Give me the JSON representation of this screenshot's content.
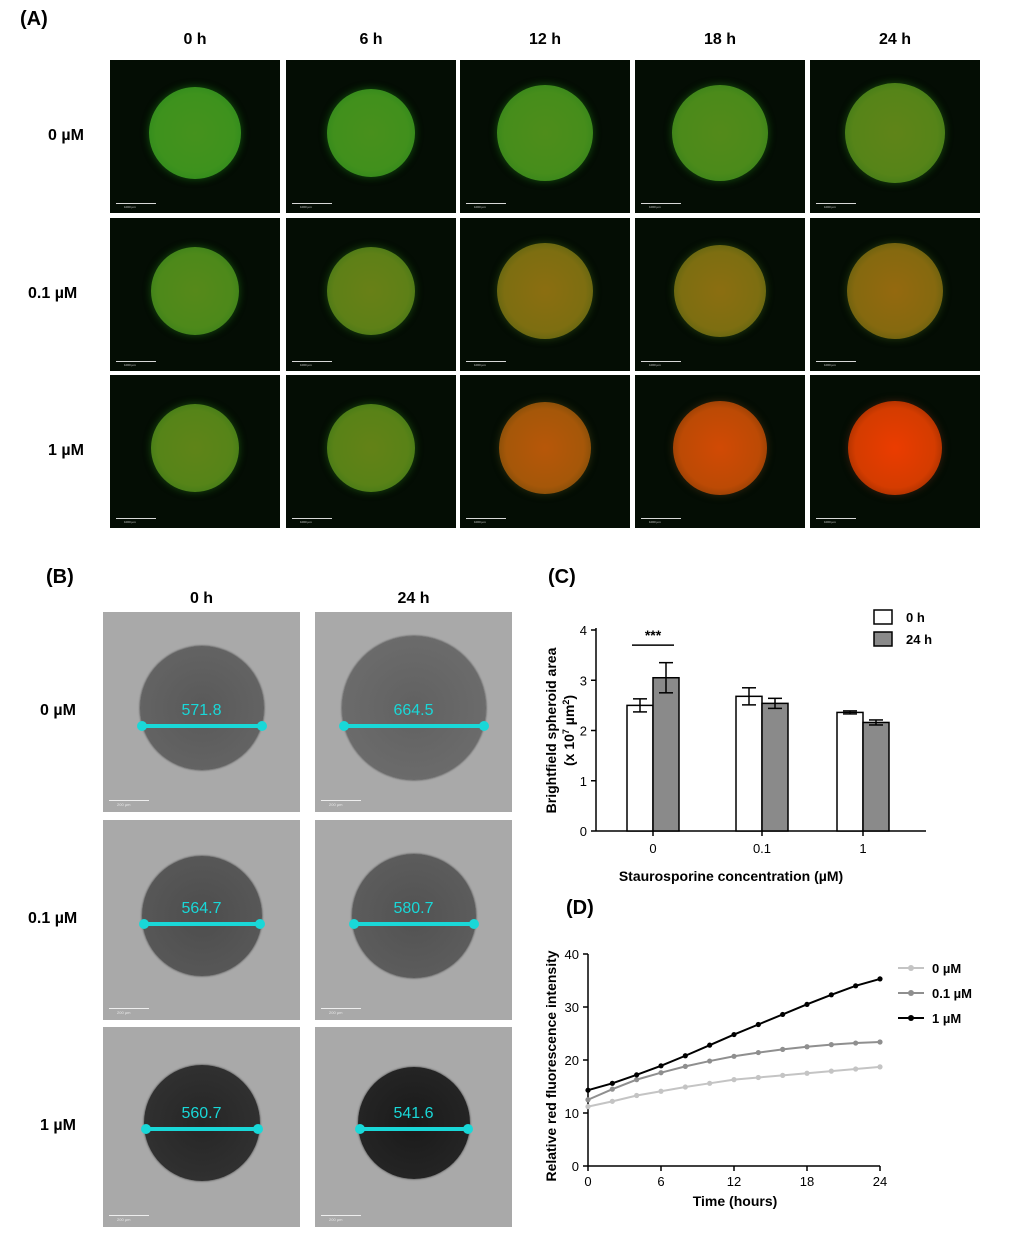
{
  "panelA": {
    "label": "(A)",
    "times": [
      "0 h",
      "6 h",
      "12 h",
      "18 h",
      "24 h"
    ],
    "concentrations": [
      "0 µM",
      "0.1 µM",
      "1 µM"
    ],
    "scale_label": "1000 µm"
  },
  "panelB": {
    "label": "(B)",
    "times": [
      "0 h",
      "24 h"
    ],
    "concentrations": [
      "0 µM",
      "0.1 µM",
      "1 µM"
    ],
    "measurements": [
      [
        "571.8",
        "664.5"
      ],
      [
        "564.7",
        "580.7"
      ],
      [
        "560.7",
        "541.6"
      ]
    ],
    "scale_label": "200 µm",
    "colors": {
      "measure_line": "#19d8d8"
    }
  },
  "panelC": {
    "label": "(C)",
    "chart_data": {
      "type": "bar",
      "categories": [
        "0",
        "0.1",
        "1"
      ],
      "series": [
        {
          "name": "0 h",
          "values": [
            2.5,
            2.68,
            2.36
          ],
          "errors": [
            0.13,
            0.17,
            0.03
          ],
          "color": "#ffffff"
        },
        {
          "name": "24 h",
          "values": [
            3.05,
            2.54,
            2.16
          ],
          "errors": [
            0.3,
            0.1,
            0.05
          ],
          "color": "#8a8a8a"
        }
      ],
      "ylabel_line1": "Brightfield spheroid area",
      "ylabel_line2": "(x 10",
      "ylabel_sup1": "7",
      "ylabel_mid": " µm",
      "ylabel_sup2": "2",
      "ylabel_end": ")",
      "xlabel": "Staurosporine concentration (µM)",
      "ylim": [
        0,
        4
      ],
      "yticks": [
        "0",
        "1",
        "2",
        "3",
        "4"
      ],
      "significance": "***",
      "legend_position": "top-right"
    }
  },
  "panelD": {
    "label": "(D)",
    "chart_data": {
      "type": "line",
      "xlabel": "Time (hours)",
      "ylabel": "Relative red fluorescence intensity",
      "xlim": [
        0,
        24
      ],
      "ylim": [
        0,
        40
      ],
      "xticks": [
        "0",
        "6",
        "12",
        "18",
        "24"
      ],
      "yticks": [
        "0",
        "10",
        "20",
        "30",
        "40"
      ],
      "legend_position": "top-right",
      "series": [
        {
          "name": "0 µM",
          "color": "#c4c4c4",
          "x": [
            0,
            2,
            4,
            6,
            8,
            10,
            12,
            14,
            16,
            18,
            20,
            22,
            24
          ],
          "y": [
            11.2,
            12.2,
            13.3,
            14.1,
            14.9,
            15.6,
            16.3,
            16.7,
            17.1,
            17.5,
            17.9,
            18.3,
            18.7
          ]
        },
        {
          "name": "0.1 µM",
          "color": "#8f8f8f",
          "x": [
            0,
            2,
            4,
            6,
            8,
            10,
            12,
            14,
            16,
            18,
            20,
            22,
            24
          ],
          "y": [
            12.5,
            14.5,
            16.3,
            17.6,
            18.8,
            19.8,
            20.7,
            21.4,
            22,
            22.5,
            22.9,
            23.2,
            23.4
          ]
        },
        {
          "name": "1 µM",
          "color": "#000000",
          "x": [
            0,
            2,
            4,
            6,
            8,
            10,
            12,
            14,
            16,
            18,
            20,
            22,
            24
          ],
          "y": [
            14.3,
            15.6,
            17.2,
            18.9,
            20.8,
            22.8,
            24.8,
            26.7,
            28.6,
            30.5,
            32.3,
            34,
            35.3
          ]
        }
      ]
    }
  }
}
